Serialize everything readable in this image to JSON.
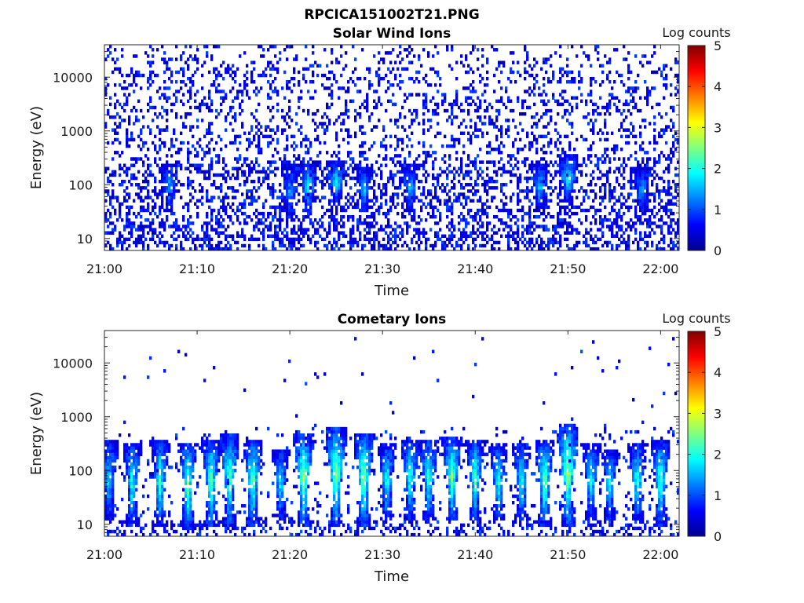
{
  "figure": {
    "title": "RPCICA151002T21.PNG"
  },
  "chart_data": [
    {
      "type": "heatmap",
      "title": "Solar Wind Ions",
      "xlabel": "Time",
      "ylabel": "Energy (eV)",
      "x_ticks": [
        "21:00",
        "21:10",
        "21:20",
        "21:30",
        "21:40",
        "21:50",
        "22:00"
      ],
      "x_range": [
        "21:00",
        "22:02"
      ],
      "y_ticks": [
        "10",
        "100",
        "1000",
        "10000"
      ],
      "y_scale": "log",
      "y_range": [
        6,
        40000
      ],
      "colorbar": {
        "label": "Log counts",
        "ticks": [
          "0",
          "1",
          "2",
          "3",
          "4",
          "5"
        ],
        "range": [
          0,
          5
        ],
        "colormap": "jet"
      },
      "description_of_content": "sparse low-count pixels (log counts ~0-1.5) throughout 6 eV - 40 keV, denser below ~300 eV; brief vertical streaks reaching log counts ~2 near 21:20-21:33 and 21:47-21:52",
      "bursts": [
        {
          "time": "21:07",
          "e_low": 40,
          "e_high": 200,
          "peak": 1.5
        },
        {
          "time": "21:20",
          "e_low": 30,
          "e_high": 180,
          "peak": 1.6
        },
        {
          "time": "21:22",
          "e_low": 40,
          "e_high": 200,
          "peak": 2.0
        },
        {
          "time": "21:25",
          "e_low": 60,
          "e_high": 220,
          "peak": 1.9
        },
        {
          "time": "21:28",
          "e_low": 40,
          "e_high": 160,
          "peak": 1.8
        },
        {
          "time": "21:33",
          "e_low": 40,
          "e_high": 180,
          "peak": 1.7
        },
        {
          "time": "21:47",
          "e_low": 40,
          "e_high": 200,
          "peak": 1.8
        },
        {
          "time": "21:50",
          "e_low": 60,
          "e_high": 300,
          "peak": 2.0
        },
        {
          "time": "21:58",
          "e_low": 40,
          "e_high": 160,
          "peak": 1.6
        }
      ]
    },
    {
      "type": "heatmap",
      "title": "Cometary Ions",
      "xlabel": "Time",
      "ylabel": "Energy (eV)",
      "x_ticks": [
        "21:00",
        "21:10",
        "21:20",
        "21:30",
        "21:40",
        "21:50",
        "22:00"
      ],
      "x_range": [
        "21:00",
        "22:02"
      ],
      "y_ticks": [
        "10",
        "100",
        "1000",
        "10000"
      ],
      "y_scale": "log",
      "y_range": [
        6,
        40000
      ],
      "colorbar": {
        "label": "Log counts",
        "ticks": [
          "0",
          "1",
          "2",
          "3",
          "4",
          "5"
        ],
        "range": [
          0,
          5
        ],
        "colormap": "jet"
      },
      "description_of_content": "periodic ion bursts roughly every 2.5-3 minutes spanning ~10-600 eV with peak log counts ~2.5-3 near 40-200 eV; scattered isolated pixels up to ~10 keV",
      "bursts": [
        {
          "time": "21:00.5",
          "e_low": 15,
          "e_high": 300,
          "peak": 1.9
        },
        {
          "time": "21:03",
          "e_low": 12,
          "e_high": 250,
          "peak": 2.2
        },
        {
          "time": "21:06",
          "e_low": 12,
          "e_high": 300,
          "peak": 2.3
        },
        {
          "time": "21:09",
          "e_low": 10,
          "e_high": 250,
          "peak": 2.6
        },
        {
          "time": "21:11.5",
          "e_low": 12,
          "e_high": 300,
          "peak": 2.5
        },
        {
          "time": "21:13.5",
          "e_low": 12,
          "e_high": 400,
          "peak": 2.5
        },
        {
          "time": "21:16",
          "e_low": 12,
          "e_high": 300,
          "peak": 2.6
        },
        {
          "time": "21:19",
          "e_low": 15,
          "e_high": 200,
          "peak": 2.0
        },
        {
          "time": "21:21.5",
          "e_low": 12,
          "e_high": 400,
          "peak": 2.9
        },
        {
          "time": "21:25",
          "e_low": 12,
          "e_high": 500,
          "peak": 2.8
        },
        {
          "time": "21:28",
          "e_low": 12,
          "e_high": 400,
          "peak": 2.8
        },
        {
          "time": "21:30.5",
          "e_low": 15,
          "e_high": 250,
          "peak": 2.2
        },
        {
          "time": "21:33",
          "e_low": 15,
          "e_high": 300,
          "peak": 2.2
        },
        {
          "time": "21:35",
          "e_low": 15,
          "e_high": 300,
          "peak": 2.3
        },
        {
          "time": "21:37.5",
          "e_low": 15,
          "e_high": 350,
          "peak": 2.6
        },
        {
          "time": "21:40",
          "e_low": 15,
          "e_high": 300,
          "peak": 2.4
        },
        {
          "time": "21:42.5",
          "e_low": 15,
          "e_high": 250,
          "peak": 2.2
        },
        {
          "time": "21:45",
          "e_low": 15,
          "e_high": 250,
          "peak": 2.2
        },
        {
          "time": "21:47.5",
          "e_low": 12,
          "e_high": 300,
          "peak": 2.6
        },
        {
          "time": "21:50",
          "e_low": 12,
          "e_high": 600,
          "peak": 2.9
        },
        {
          "time": "21:52.5",
          "e_low": 15,
          "e_high": 250,
          "peak": 2.1
        },
        {
          "time": "21:54.5",
          "e_low": 15,
          "e_high": 200,
          "peak": 2.0
        },
        {
          "time": "21:57.5",
          "e_low": 15,
          "e_high": 250,
          "peak": 2.3
        },
        {
          "time": "22:00",
          "e_low": 12,
          "e_high": 300,
          "peak": 2.4
        }
      ]
    }
  ]
}
